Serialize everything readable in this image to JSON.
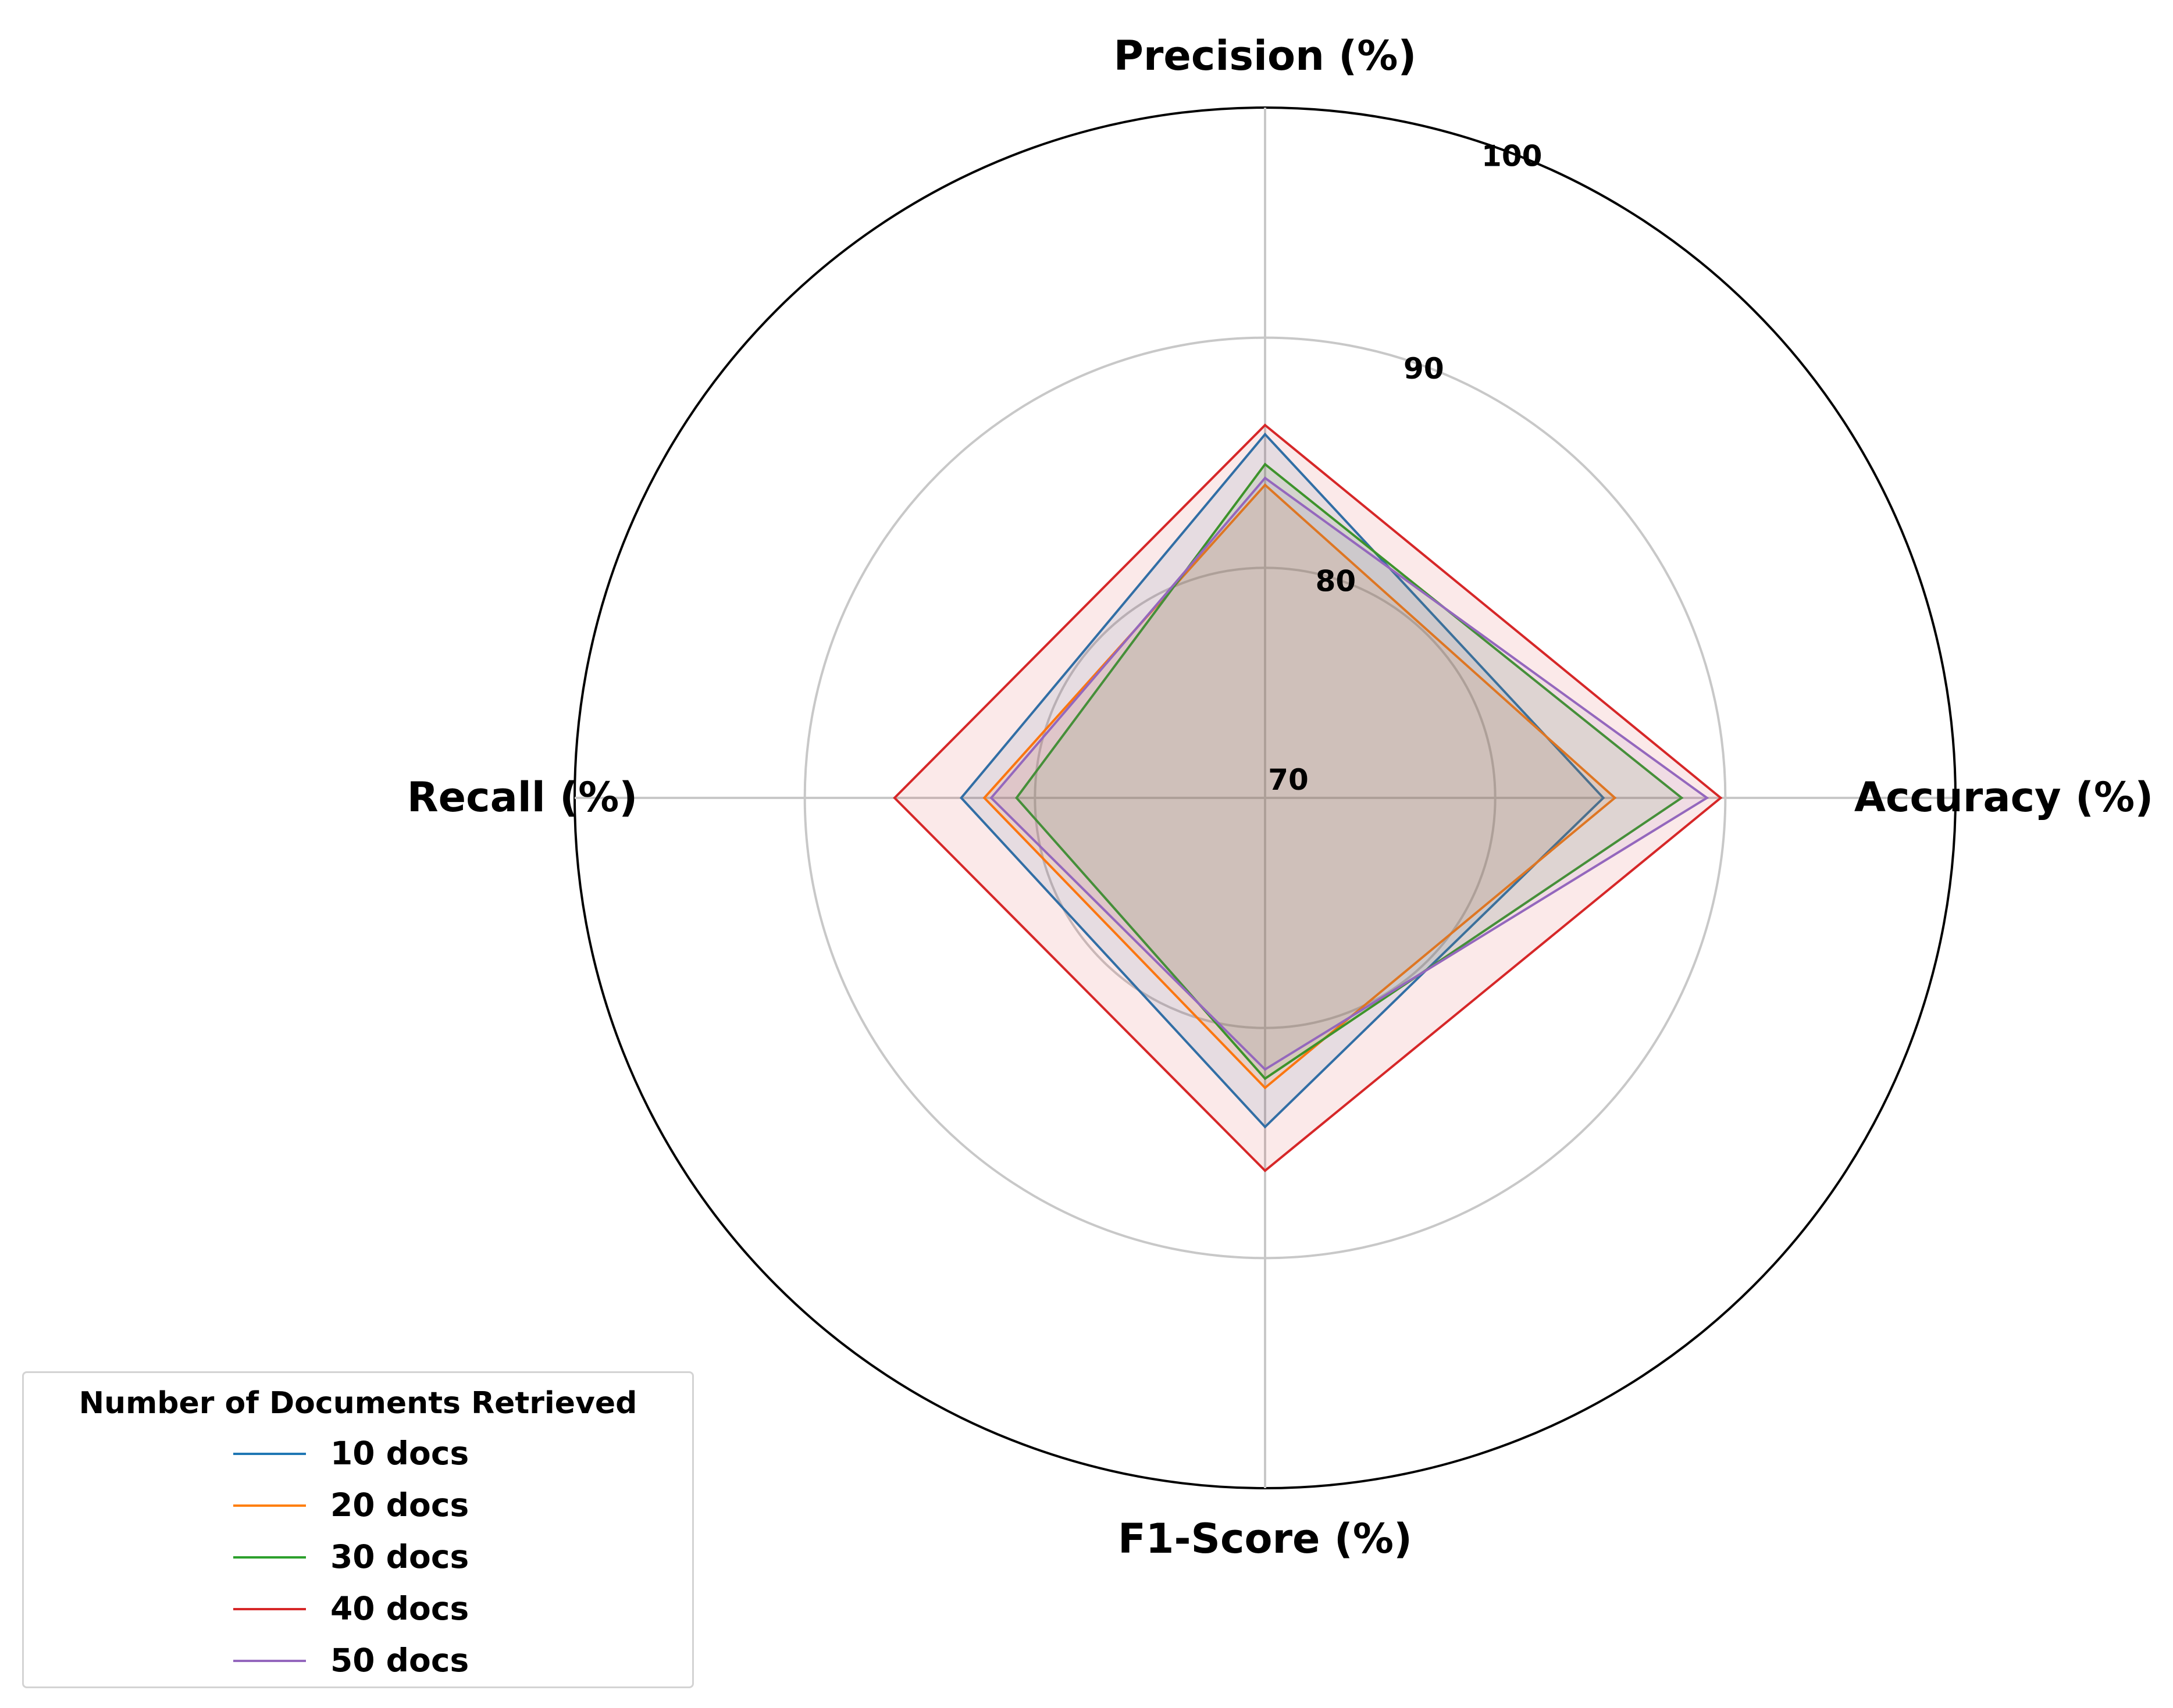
{
  "chart_data": {
    "type": "radar",
    "axes": [
      "Precision (%)",
      "Accuracy (%)",
      "F1-Score (%)",
      "Recall (%)"
    ],
    "r_range": [
      70,
      100
    ],
    "r_ticks": [
      "70",
      "80",
      "90",
      "100"
    ],
    "grid": true,
    "legend": {
      "title": "Number of Documents Retrieved",
      "placement": "bottom-left"
    },
    "series": [
      {
        "name": "10 docs",
        "color": "#1f77b4",
        "values": [
          85.8,
          84.7,
          84.3,
          83.2
        ]
      },
      {
        "name": "20 docs",
        "color": "#ff7f0e",
        "values": [
          83.6,
          85.2,
          82.6,
          82.2
        ]
      },
      {
        "name": "30 docs",
        "color": "#2ca02c",
        "values": [
          84.5,
          88.1,
          82.2,
          80.8
        ]
      },
      {
        "name": "40 docs",
        "color": "#d62728",
        "values": [
          86.2,
          89.8,
          86.2,
          86.1
        ]
      },
      {
        "name": "50 docs",
        "color": "#9467bd",
        "values": [
          83.9,
          89.2,
          81.8,
          81.9
        ]
      }
    ]
  }
}
